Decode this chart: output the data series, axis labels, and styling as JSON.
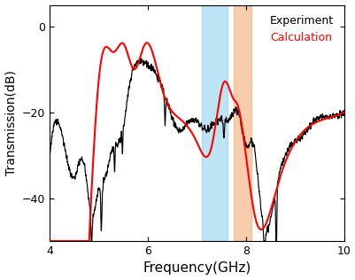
{
  "xlim": [
    4,
    10
  ],
  "ylim": [
    -50,
    5
  ],
  "xlabel": "Frequency(GHz)",
  "ylabel": "Transmission(dB)",
  "legend_labels": [
    "Experiment",
    "Calculation"
  ],
  "legend_colors": [
    "black",
    "red"
  ],
  "blue_band": [
    7.1,
    7.62
  ],
  "orange_band": [
    7.75,
    8.12
  ],
  "blue_band_color": "#87CEEB",
  "orange_band_color": "#F4A46A",
  "blue_band_alpha": 0.55,
  "orange_band_alpha": 0.55,
  "xticks": [
    4,
    6,
    8,
    10
  ],
  "yticks": [
    0,
    -20,
    -40
  ],
  "background_color": "#ffffff"
}
